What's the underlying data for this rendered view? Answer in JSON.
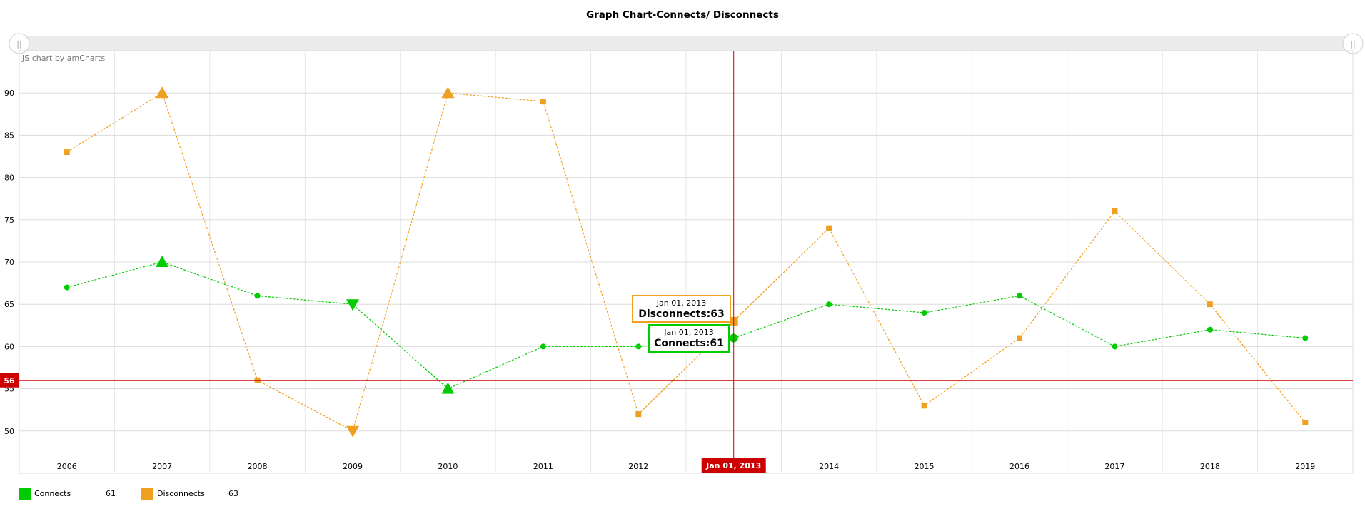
{
  "chart_data": {
    "type": "line",
    "title": "Graph Chart-Connects/ Disconnects",
    "credit": "JS chart by amCharts",
    "x": [
      "2006",
      "2007",
      "2008",
      "2009",
      "2010",
      "2011",
      "2012",
      "2013",
      "2014",
      "2015",
      "2016",
      "2017",
      "2018",
      "2019"
    ],
    "x_tick_labels": [
      "2006",
      "2007",
      "2008",
      "2009",
      "2010",
      "2011",
      "2012",
      "Jan 01, 2013",
      "2014",
      "2015",
      "2016",
      "2017",
      "2018",
      "2019"
    ],
    "ylim": [
      45,
      95
    ],
    "y_ticks": [
      50,
      55,
      60,
      65,
      70,
      75,
      80,
      85,
      90
    ],
    "grid": true,
    "legend_position": "bottom-left",
    "series": [
      {
        "name": "Connects",
        "color": "#00cc00",
        "values": [
          67,
          70,
          66,
          65,
          55,
          60,
          60,
          61,
          65,
          64,
          66,
          60,
          62,
          61
        ],
        "markers": [
          "circle",
          "triangle-up",
          "circle",
          "triangle-down",
          "triangle-up",
          "circle",
          "circle",
          "circle",
          "circle",
          "circle",
          "circle",
          "circle",
          "circle",
          "circle"
        ],
        "legend_value": "61"
      },
      {
        "name": "Disconnects",
        "color": "#f0a020",
        "values": [
          83,
          90,
          56,
          50,
          90,
          89,
          52,
          63,
          74,
          53,
          61,
          76,
          65,
          51
        ],
        "markers": [
          "square",
          "triangle-up",
          "square",
          "triangle-down",
          "triangle-up",
          "square",
          "square",
          "square",
          "square",
          "square",
          "square",
          "square",
          "square",
          "square"
        ],
        "legend_value": "63"
      }
    ],
    "cursor": {
      "x_index": 7,
      "x_label": "Jan 01, 2013",
      "y_value": 56,
      "y_label": "56",
      "color": "#cc0000"
    },
    "tooltips": [
      {
        "series": "Disconnects",
        "date": "Jan 01, 2013",
        "text": "Disconnects:63"
      },
      {
        "series": "Connects",
        "date": "Jan 01, 2013",
        "text": "Connects:61"
      }
    ],
    "scrollbar": {
      "left_grip": "||",
      "right_grip": "||"
    }
  }
}
